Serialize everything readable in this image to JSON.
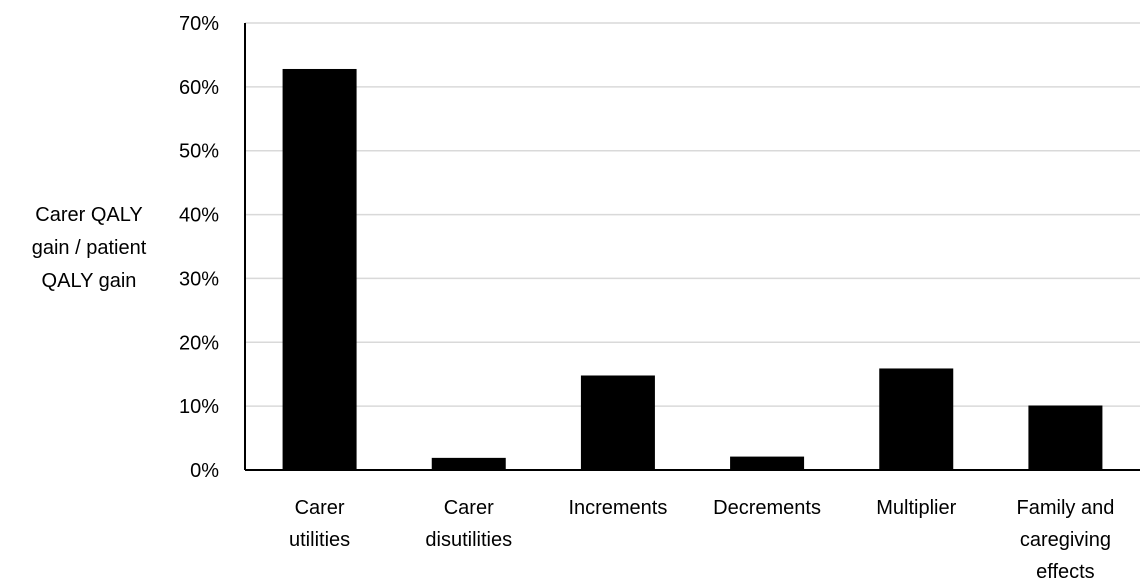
{
  "chart_data": {
    "type": "bar",
    "title": "",
    "ylabel": [
      "Carer QALY",
      "gain / patient",
      "QALY gain"
    ],
    "xlabel": "",
    "categories": [
      [
        "Carer",
        "utilities"
      ],
      [
        "Carer",
        "disutilities"
      ],
      [
        "Increments"
      ],
      [
        "Decrements"
      ],
      [
        "Multiplier"
      ],
      [
        "Family and",
        "caregiving",
        "effects"
      ]
    ],
    "values": [
      62.8,
      1.9,
      14.8,
      2.1,
      15.9,
      10.1
    ],
    "ylim": [
      0,
      70
    ],
    "yticks": [
      "0%",
      "10%",
      "20%",
      "30%",
      "40%",
      "50%",
      "60%",
      "70%"
    ],
    "grid": true,
    "legend": "none",
    "colors": {
      "bar": "#000000",
      "grid": "#d9d9d9",
      "axis": "#000000"
    }
  }
}
